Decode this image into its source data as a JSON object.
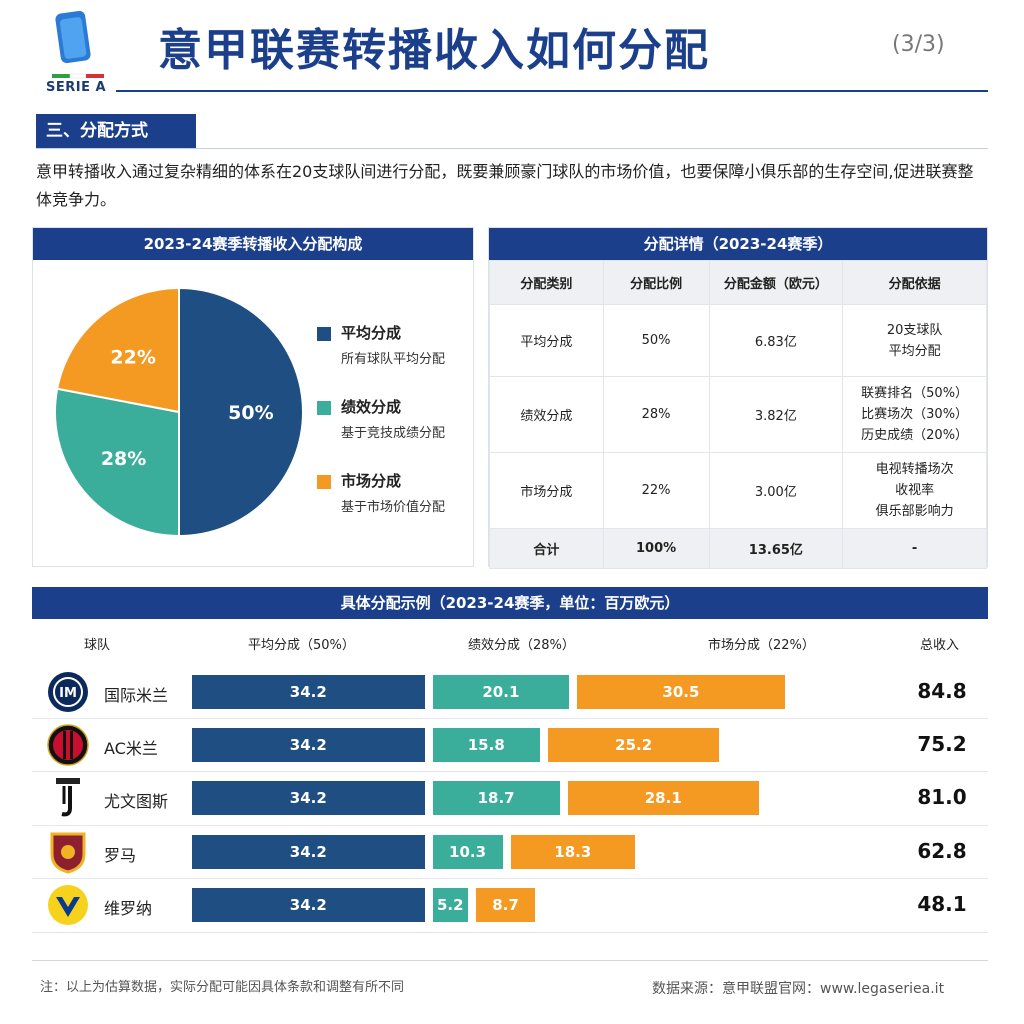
{
  "header": {
    "logo_text": "SERIE A",
    "title": "意甲联赛转播收入如何分配",
    "page": "(3/3)"
  },
  "section": {
    "label": "三、分配方式",
    "intro": "意甲转播收入通过复杂精细的体系在20支球队间进行分配，既要兼顾豪门球队的市场价值，也要保障小俱乐部的生存空间,促进联赛整体竞争力。"
  },
  "colors": {
    "blue": "#1f4e82",
    "teal": "#3aae9a",
    "orange": "#f49a22",
    "navy": "#1c3f8c"
  },
  "chart_data": [
    {
      "type": "pie",
      "title": "2023-24赛季转播收入分配构成",
      "slices": [
        {
          "name": "平均分成",
          "desc": "所有球队平均分配",
          "value": 50,
          "label": "50%",
          "color": "#1f4e82"
        },
        {
          "name": "绩效分成",
          "desc": "基于竞技成绩分配",
          "value": 28,
          "label": "28%",
          "color": "#3aae9a"
        },
        {
          "name": "市场分成",
          "desc": "基于市场价值分配",
          "value": 22,
          "label": "22%",
          "color": "#f49a22"
        }
      ]
    },
    {
      "type": "bar",
      "title": "具体分配示例（2023-24赛季，单位：百万欧元）",
      "stacked": true,
      "orientation": "horizontal",
      "columns": {
        "team": "球队",
        "s0": "平均分成（50%）",
        "s1": "绩效分成（28%）",
        "s2": "市场分成（22%）",
        "total": "总收入"
      },
      "categories": [
        "国际米兰",
        "AC米兰",
        "尤文图斯",
        "罗马",
        "维罗纳"
      ],
      "series": [
        {
          "name": "平均分成（50%）",
          "values": [
            34.2,
            34.2,
            34.2,
            34.2,
            34.2
          ],
          "color": "#1f4e82"
        },
        {
          "name": "绩效分成（28%）",
          "values": [
            20.1,
            15.8,
            18.7,
            10.3,
            5.2
          ],
          "color": "#3aae9a"
        },
        {
          "name": "市场分成（22%）",
          "values": [
            30.5,
            25.2,
            28.1,
            18.3,
            8.7
          ],
          "color": "#f49a22"
        }
      ],
      "totals": [
        "84.8",
        "75.2",
        "81.0",
        "62.8",
        "48.1"
      ],
      "team_icons": [
        "inter-logo-icon",
        "ac-milan-logo-icon",
        "juventus-logo-icon",
        "roma-logo-icon",
        "verona-logo-icon"
      ]
    }
  ],
  "detail_table": {
    "title": "分配详情（2023-24赛季）",
    "headers": [
      "分配类别",
      "分配比例",
      "分配金额（欧元）",
      "分配依据"
    ],
    "rows": [
      {
        "category": "平均分成",
        "ratio": "50%",
        "amount": "6.83亿",
        "basis": [
          "20支球队",
          "平均分配"
        ]
      },
      {
        "category": "绩效分成",
        "ratio": "28%",
        "amount": "3.82亿",
        "basis": [
          "联赛排名（50%）",
          "比赛场次（30%）",
          "历史成绩（20%）"
        ]
      },
      {
        "category": "市场分成",
        "ratio": "22%",
        "amount": "3.00亿",
        "basis": [
          "电视转播场次",
          "收视率",
          "俱乐部影响力"
        ]
      }
    ],
    "total": {
      "category": "合计",
      "ratio": "100%",
      "amount": "13.65亿",
      "basis": "-"
    }
  },
  "footer": {
    "note": "注：以上为估算数据，实际分配可能因具体条款和调整有所不同",
    "source": "数据来源：意甲联盟官网：www.legaseriea.it"
  }
}
